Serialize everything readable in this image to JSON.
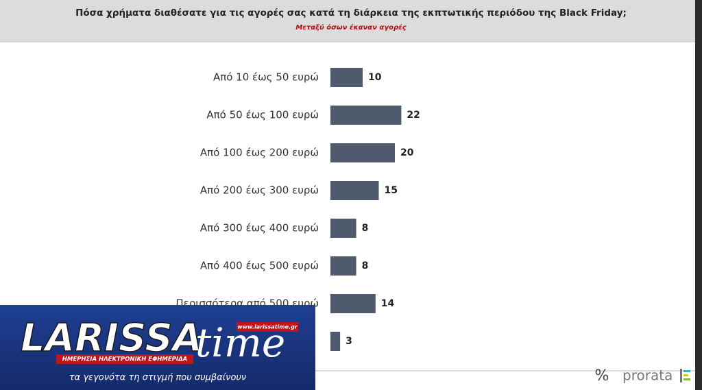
{
  "chart_data": {
    "type": "bar",
    "orientation": "horizontal",
    "title": "Πόσα χρήματα διαθέσατε για τις αγορές σας κατά τη διάρκεια της εκπτωτικής περιόδου της Black Friday;",
    "subtitle": "Μεταξύ όσων έκαναν αγορές",
    "categories": [
      "Από 10 έως 50 ευρώ",
      "Από 50 έως 100 ευρώ",
      "Από 100 έως 200 ευρώ",
      "Από 200 έως 300 ευρώ",
      "Από 300 έως 400 ευρώ",
      "Από 400 έως 500 ευρώ",
      "Περισσότερα από 500 ευρώ",
      null
    ],
    "values": [
      10,
      22,
      20,
      15,
      8,
      8,
      14,
      3
    ],
    "color": "#4f5b6c"
  },
  "footer": {
    "symbol": "%",
    "brand": "prorata"
  },
  "overlay": {
    "logo_main": "LARISSA",
    "logo_time": "time",
    "url": "www.larissatime.gr",
    "tagline": "ΗΜΕΡΗΣΙΑ ΗΛΕΚΤΡΟΝΙΚΗ ΕΦΗΜΕΡΙΔΑ",
    "slogan": "τα γεγονότα τη στιγμή που συμβαίνουν"
  }
}
